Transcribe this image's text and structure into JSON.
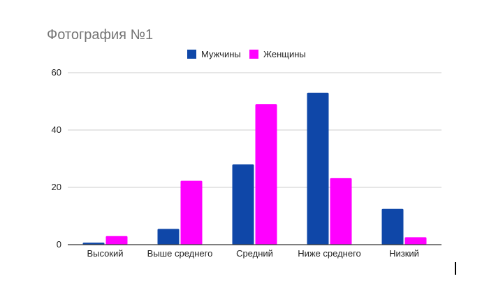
{
  "chart_data": {
    "type": "bar",
    "title": "Фотография №1",
    "categories": [
      "Высокий",
      "Выше среднего",
      "Средний",
      "Ниже среднего",
      "Низкий"
    ],
    "series": [
      {
        "name": "Мужчины",
        "color": "#0f47a8",
        "values": [
          0.7,
          5.5,
          28,
          53,
          12.5
        ]
      },
      {
        "name": "Женщины",
        "color": "#ff00ff",
        "values": [
          3,
          22.3,
          49,
          23.2,
          2.6
        ]
      }
    ],
    "yticks": [
      0,
      20,
      40,
      60
    ],
    "ylim": [
      0,
      60
    ],
    "legend_position": "top-center",
    "grid": true
  }
}
